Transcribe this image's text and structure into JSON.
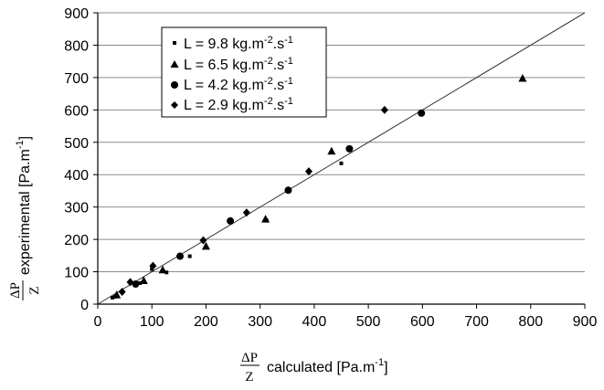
{
  "chart_data": {
    "type": "scatter",
    "xlabel": {
      "fraction_numerator": "ΔP",
      "fraction_denominator": "Z",
      "text": "calculated [Pa.m",
      "superscript": "-1",
      "close": "]"
    },
    "ylabel": {
      "fraction_numerator": "ΔP",
      "fraction_denominator": "Z",
      "text": "experimental [Pa.m",
      "superscript": "-1",
      "close": "]"
    },
    "xlim": [
      0,
      900
    ],
    "ylim": [
      0,
      900
    ],
    "x_ticks": [
      "0",
      "100",
      "200",
      "300",
      "400",
      "500",
      "600",
      "700",
      "800",
      "900"
    ],
    "y_ticks": [
      "0",
      "100",
      "200",
      "300",
      "400",
      "500",
      "600",
      "700",
      "800",
      "900"
    ],
    "grid": "horizontal",
    "legend_position": "top-left",
    "reference_line": {
      "from": [
        0,
        0
      ],
      "to": [
        900,
        900
      ]
    },
    "series": [
      {
        "name": "L = 9.8 kg.m-2.s-1",
        "legend": {
          "prefix": "L = 9.8 kg.m",
          "sup1": "-2",
          "mid": ".s",
          "sup2": "-1"
        },
        "marker": "small-square",
        "points": [
          [
            27,
            20
          ],
          [
            32,
            23
          ],
          [
            78,
            65
          ],
          [
            100,
            108
          ],
          [
            127,
            98
          ],
          [
            170,
            148
          ],
          [
            312,
            258
          ],
          [
            450,
            435
          ]
        ]
      },
      {
        "name": "L = 6.5 kg.m-2.s-1",
        "legend": {
          "prefix": "L = 6.5 kg.m",
          "sup1": "-2",
          "mid": ".s",
          "sup2": "-1"
        },
        "marker": "triangle",
        "points": [
          [
            35,
            28
          ],
          [
            85,
            72
          ],
          [
            120,
            105
          ],
          [
            200,
            178
          ],
          [
            310,
            262
          ],
          [
            432,
            472
          ],
          [
            785,
            697
          ]
        ]
      },
      {
        "name": "L = 4.2 kg.m-2.s-1",
        "legend": {
          "prefix": "L = 4.2 kg.m",
          "sup1": "-2",
          "mid": ".s",
          "sup2": "-1"
        },
        "marker": "circle",
        "points": [
          [
            70,
            62
          ],
          [
            152,
            148
          ],
          [
            245,
            257
          ],
          [
            352,
            352
          ],
          [
            465,
            480
          ],
          [
            598,
            590
          ]
        ]
      },
      {
        "name": "L = 2.9 kg.m-2.s-1",
        "legend": {
          "prefix": "L = 2.9 kg.m",
          "sup1": "-2",
          "mid": ".s",
          "sup2": "-1"
        },
        "marker": "diamond",
        "points": [
          [
            45,
            38
          ],
          [
            60,
            68
          ],
          [
            102,
            118
          ],
          [
            195,
            197
          ],
          [
            275,
            283
          ],
          [
            390,
            410
          ],
          [
            530,
            600
          ]
        ]
      }
    ]
  },
  "colors": {
    "marker": "#000000",
    "grid": "#8c8c8c",
    "line": "#333333",
    "axis": "#000000"
  }
}
